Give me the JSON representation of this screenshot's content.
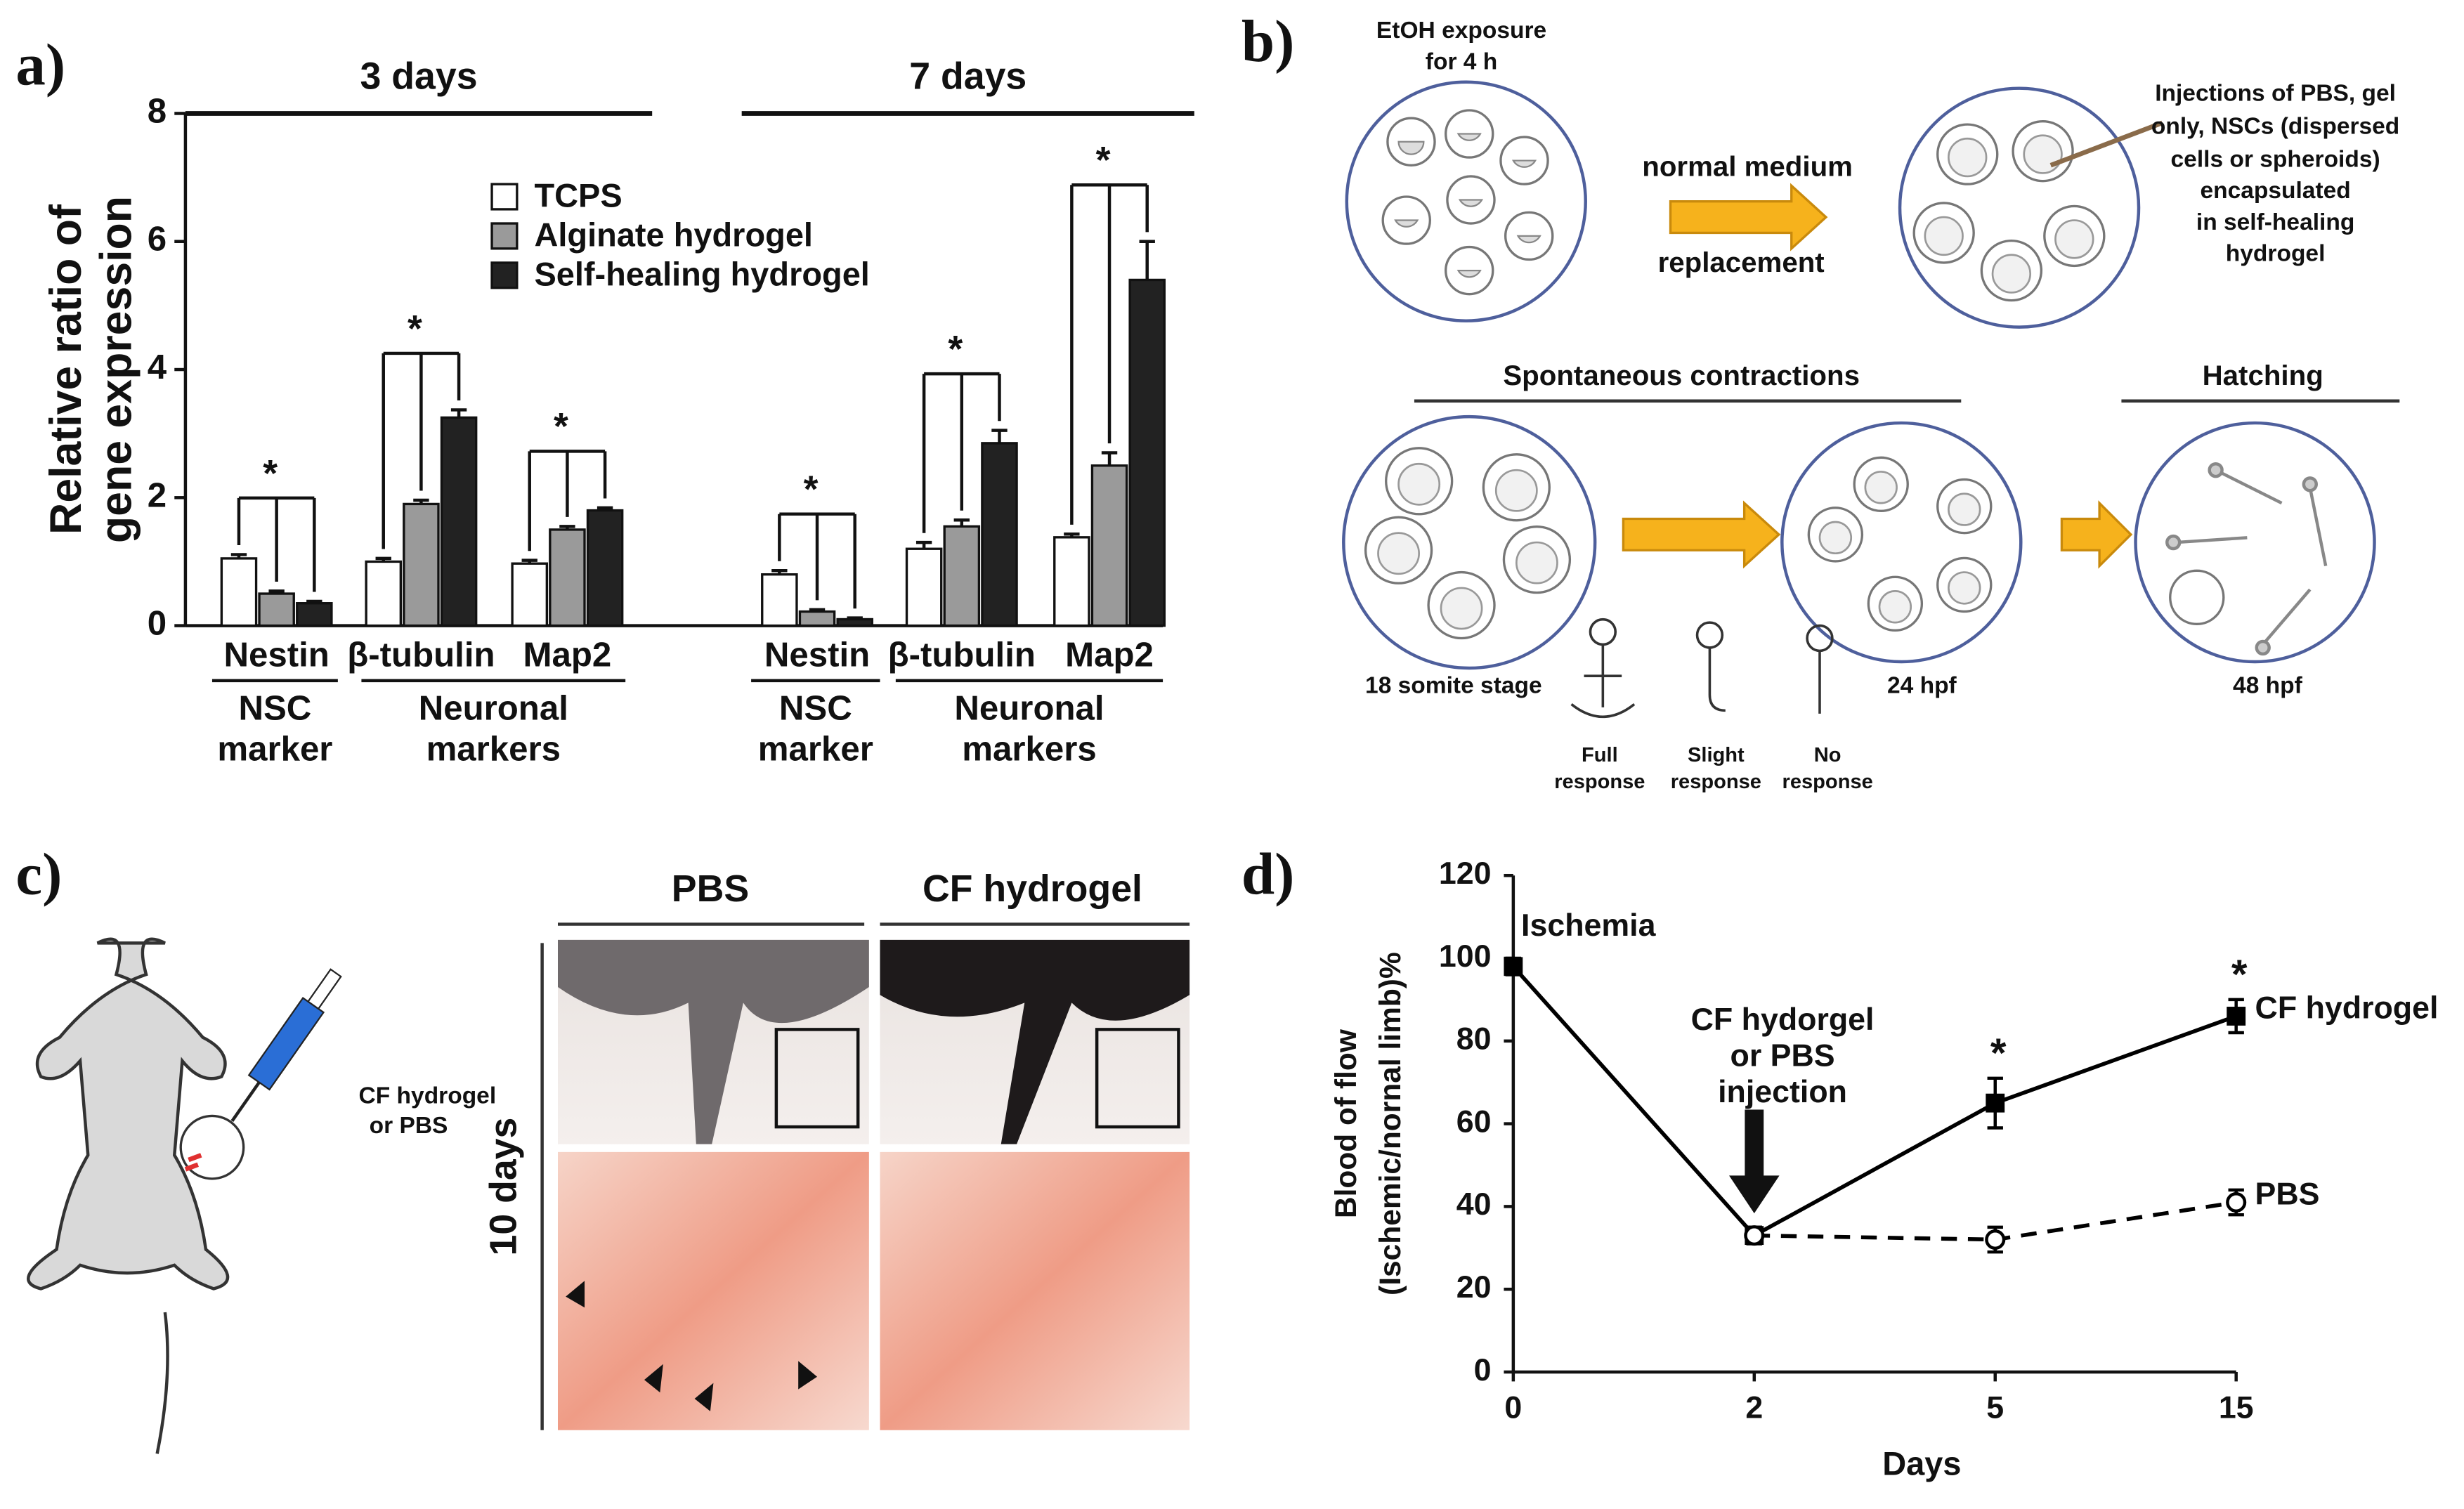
{
  "chart_data": [
    {
      "type": "bar",
      "panel_label": "a)",
      "ylabel": [
        "Relative ratio of",
        "gene expression"
      ],
      "periods": [
        "3 days",
        "7 days"
      ],
      "categories": [
        "Nestin",
        "β-tubulin",
        "Map2",
        "Nestin",
        "β-tubulin",
        "Map2"
      ],
      "marker_groups": [
        [
          "NSC",
          "marker"
        ],
        [
          "Neuronal",
          "markers"
        ],
        [
          "NSC",
          "marker"
        ],
        [
          "Neuronal",
          "markers"
        ]
      ],
      "annotations": [
        "*",
        "*",
        "*",
        "*",
        "*",
        "*"
      ],
      "series": [
        {
          "name": "TCPS",
          "color": "#ffffff",
          "values": [
            1.05,
            1.0,
            0.97,
            0.8,
            1.2,
            1.38
          ],
          "errors": [
            0.06,
            0.05,
            0.05,
            0.06,
            0.1,
            0.05
          ]
        },
        {
          "name": "Alginate hydrogel",
          "color": "#9a9a9a",
          "values": [
            0.5,
            1.9,
            1.5,
            0.22,
            1.55,
            2.5
          ],
          "errors": [
            0.04,
            0.06,
            0.05,
            0.03,
            0.1,
            0.2
          ]
        },
        {
          "name": "Self-healing hydrogel",
          "color": "#222222",
          "values": [
            0.35,
            3.25,
            1.8,
            0.1,
            2.85,
            5.4
          ],
          "errors": [
            0.03,
            0.12,
            0.04,
            0.02,
            0.2,
            0.6
          ]
        }
      ],
      "ylim": [
        0,
        8
      ],
      "yticks": [
        0,
        2,
        4,
        6,
        8
      ]
    },
    {
      "type": "line",
      "panel_label": "d)",
      "xlabel": "Days",
      "ylabel": [
        "Blood of flow",
        "(Ischemic/nornal limb)%"
      ],
      "categories": [
        "0",
        "2",
        "5",
        "15"
      ],
      "annotations": {
        "ischemia": "Ischemia",
        "injection": [
          "CF hydorgel",
          "or PBS",
          "injection"
        ],
        "significance": [
          null,
          null,
          "*",
          "*"
        ]
      },
      "series": [
        {
          "name": "CF hydrogel",
          "color": "#000000",
          "dashed": false,
          "marker": "square",
          "values": [
            98,
            33,
            65,
            86
          ],
          "errors": [
            2,
            2,
            6,
            4
          ]
        },
        {
          "name": "PBS",
          "color": "#000000",
          "dashed": true,
          "marker": "circle",
          "values": [
            null,
            33,
            32,
            41
          ],
          "errors": [
            null,
            2,
            3,
            3
          ]
        }
      ],
      "ylim": [
        0,
        120
      ],
      "yticks": [
        0,
        20,
        40,
        60,
        80,
        100,
        120
      ]
    }
  ],
  "panel_b": {
    "label": "b)",
    "exposure": [
      "EtOH exposure",
      "for 4 h"
    ],
    "medium": [
      "normal medium",
      "replacement"
    ],
    "injections": [
      "Injections of PBS, gel",
      "only, NSCs (dispersed",
      "cells or spheroids)",
      "encapsulated",
      "in self-healing",
      "hydrogel"
    ],
    "phases": [
      "Spontaneous contractions",
      "Hatching"
    ],
    "stages": [
      "18 somite stage",
      "24 hpf",
      "48 hpf"
    ],
    "responses": [
      [
        "Full",
        "response"
      ],
      [
        "Slight",
        "response"
      ],
      [
        "No",
        "response"
      ]
    ]
  },
  "panel_c": {
    "label": "c)",
    "injection": [
      "CF hydrogel",
      "or PBS"
    ],
    "columns": [
      "PBS",
      "CF hydrogel"
    ],
    "row": "10 days"
  }
}
